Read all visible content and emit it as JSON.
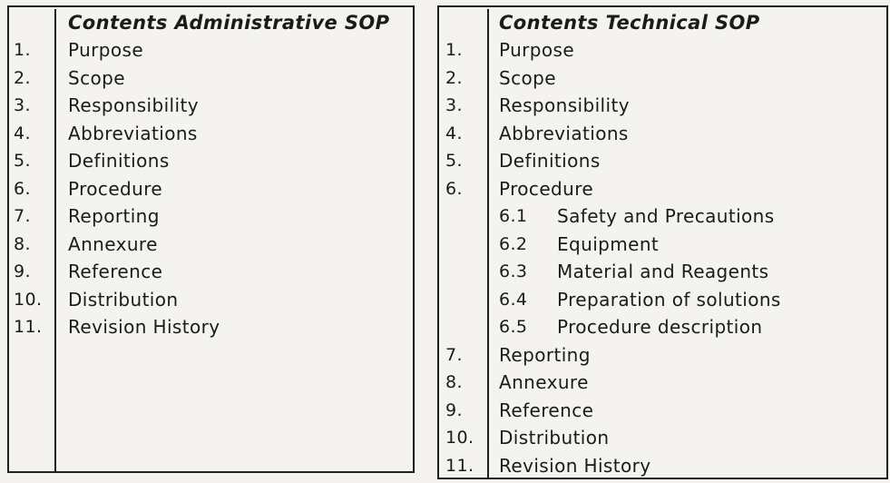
{
  "page": {
    "background_color": "#f3f2ee",
    "border_color": "#1f1f1f",
    "text_color": "#1b1b1b"
  },
  "left_panel": {
    "title": "Contents Administrative SOP",
    "items": [
      {
        "num": "1.",
        "label": "Purpose"
      },
      {
        "num": "2.",
        "label": "Scope"
      },
      {
        "num": "3.",
        "label": "Responsibility"
      },
      {
        "num": "4.",
        "label": "Abbreviations"
      },
      {
        "num": "5.",
        "label": "Definitions"
      },
      {
        "num": "6.",
        "label": "Procedure"
      },
      {
        "num": "7.",
        "label": "Reporting"
      },
      {
        "num": "8.",
        "label": "Annexure"
      },
      {
        "num": "9.",
        "label": "Reference"
      },
      {
        "num": "10.",
        "label": "Distribution"
      },
      {
        "num": "11.",
        "label": "Revision History"
      }
    ]
  },
  "right_panel": {
    "title": "Contents Technical SOP",
    "items": [
      {
        "num": "1.",
        "label": "Purpose"
      },
      {
        "num": "2.",
        "label": "Scope"
      },
      {
        "num": "3.",
        "label": "Responsibility"
      },
      {
        "num": "4.",
        "label": "Abbreviations"
      },
      {
        "num": "5.",
        "label": "Definitions"
      },
      {
        "num": "6.",
        "label": "Procedure"
      },
      {
        "num": "6.1",
        "label": "Safety and Precautions",
        "sub": true
      },
      {
        "num": "6.2",
        "label": "Equipment",
        "sub": true
      },
      {
        "num": "6.3",
        "label": "Material and Reagents",
        "sub": true
      },
      {
        "num": "6.4",
        "label": "Preparation of solutions",
        "sub": true
      },
      {
        "num": "6.5",
        "label": "Procedure description",
        "sub": true
      },
      {
        "num": "7.",
        "label": "Reporting"
      },
      {
        "num": "8.",
        "label": "Annexure"
      },
      {
        "num": "9.",
        "label": "Reference"
      },
      {
        "num": "10.",
        "label": "Distribution"
      },
      {
        "num": "11.",
        "label": "Revision History"
      }
    ]
  }
}
